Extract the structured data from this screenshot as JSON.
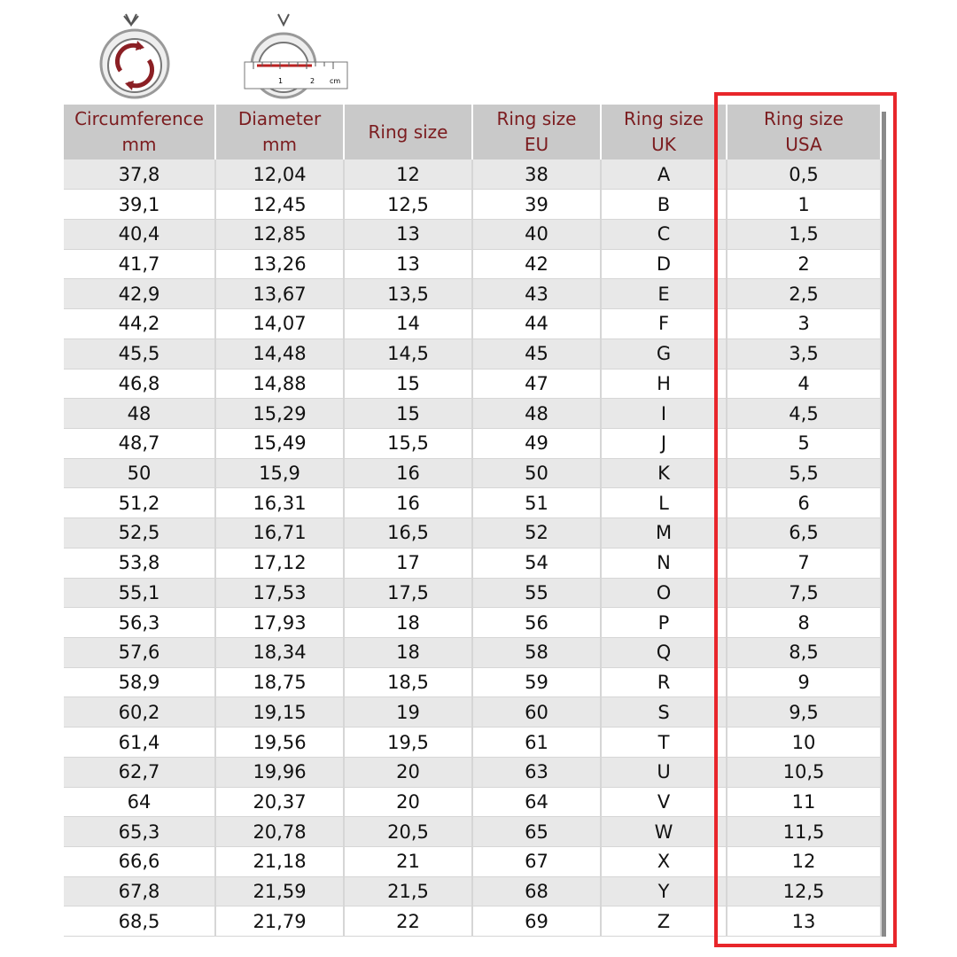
{
  "table": {
    "headers": [
      [
        "Circumference",
        "mm"
      ],
      [
        "Diameter",
        "mm"
      ],
      [
        "Ring size"
      ],
      [
        "Ring size",
        "EU"
      ],
      [
        "Ring size",
        "UK"
      ],
      [
        "Ring size",
        "USA"
      ]
    ],
    "rows": [
      [
        "37,8",
        "12,04",
        "12",
        "38",
        "A",
        "0,5"
      ],
      [
        "39,1",
        "12,45",
        "12,5",
        "39",
        "B",
        "1"
      ],
      [
        "40,4",
        "12,85",
        "13",
        "40",
        "C",
        "1,5"
      ],
      [
        "41,7",
        "13,26",
        "13",
        "42",
        "D",
        "2"
      ],
      [
        "42,9",
        "13,67",
        "13,5",
        "43",
        "E",
        "2,5"
      ],
      [
        "44,2",
        "14,07",
        "14",
        "44",
        "F",
        "3"
      ],
      [
        "45,5",
        "14,48",
        "14,5",
        "45",
        "G",
        "3,5"
      ],
      [
        "46,8",
        "14,88",
        "15",
        "47",
        "H",
        "4"
      ],
      [
        "48",
        "15,29",
        "15",
        "48",
        "I",
        "4,5"
      ],
      [
        "48,7",
        "15,49",
        "15,5",
        "49",
        "J",
        "5"
      ],
      [
        "50",
        "15,9",
        "16",
        "50",
        "K",
        "5,5"
      ],
      [
        "51,2",
        "16,31",
        "16",
        "51",
        "L",
        "6"
      ],
      [
        "52,5",
        "16,71",
        "16,5",
        "52",
        "M",
        "6,5"
      ],
      [
        "53,8",
        "17,12",
        "17",
        "54",
        "N",
        "7"
      ],
      [
        "55,1",
        "17,53",
        "17,5",
        "55",
        "O",
        "7,5"
      ],
      [
        "56,3",
        "17,93",
        "18",
        "56",
        "P",
        "8"
      ],
      [
        "57,6",
        "18,34",
        "18",
        "58",
        "Q",
        "8,5"
      ],
      [
        "58,9",
        "18,75",
        "18,5",
        "59",
        "R",
        "9"
      ],
      [
        "60,2",
        "19,15",
        "19",
        "60",
        "S",
        "9,5"
      ],
      [
        "61,4",
        "19,56",
        "19,5",
        "61",
        "T",
        "10"
      ],
      [
        "62,7",
        "19,96",
        "20",
        "63",
        "U",
        "10,5"
      ],
      [
        "64",
        "20,37",
        "20",
        "64",
        "V",
        "11"
      ],
      [
        "65,3",
        "20,78",
        "20,5",
        "65",
        "W",
        "11,5"
      ],
      [
        "66,6",
        "21,18",
        "21",
        "67",
        "X",
        "12"
      ],
      [
        "67,8",
        "21,59",
        "21,5",
        "68",
        "Y",
        "12,5"
      ],
      [
        "68,5",
        "21,79",
        "22",
        "69",
        "Z",
        "13"
      ]
    ]
  },
  "ruler": {
    "labels": [
      "1",
      "2",
      "cm"
    ]
  }
}
